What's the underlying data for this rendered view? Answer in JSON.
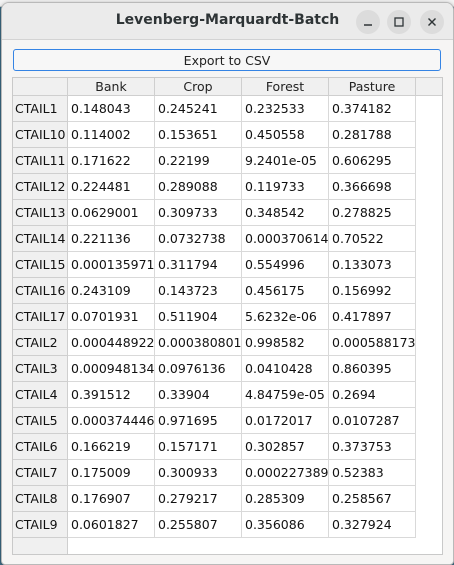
{
  "window": {
    "title": "Levenberg-Marquardt-Batch"
  },
  "toolbar": {
    "export_label": "Export to CSV"
  },
  "table": {
    "columns": [
      "Bank",
      "Crop",
      "Forest",
      "Pasture"
    ],
    "rows": [
      {
        "label": "CTAIL1",
        "values": [
          "0.148043",
          "0.245241",
          "0.232533",
          "0.374182"
        ]
      },
      {
        "label": "CTAIL10",
        "values": [
          "0.114002",
          "0.153651",
          "0.450558",
          "0.281788"
        ]
      },
      {
        "label": "CTAIL11",
        "values": [
          "0.171622",
          "0.22199",
          "9.2401e-05",
          "0.606295"
        ]
      },
      {
        "label": "CTAIL12",
        "values": [
          "0.224481",
          "0.289088",
          "0.119733",
          "0.366698"
        ]
      },
      {
        "label": "CTAIL13",
        "values": [
          "0.0629001",
          "0.309733",
          "0.348542",
          "0.278825"
        ]
      },
      {
        "label": "CTAIL14",
        "values": [
          "0.221136",
          "0.0732738",
          "0.000370614",
          "0.70522"
        ]
      },
      {
        "label": "CTAIL15",
        "values": [
          "0.000135971",
          "0.311794",
          "0.554996",
          "0.133073"
        ]
      },
      {
        "label": "CTAIL16",
        "values": [
          "0.243109",
          "0.143723",
          "0.456175",
          "0.156992"
        ]
      },
      {
        "label": "CTAIL17",
        "values": [
          "0.0701931",
          "0.511904",
          "5.6232e-06",
          "0.417897"
        ]
      },
      {
        "label": "CTAIL2",
        "values": [
          "0.000448922",
          "0.000380801",
          "0.998582",
          "0.000588173"
        ]
      },
      {
        "label": "CTAIL3",
        "values": [
          "0.000948134",
          "0.0976136",
          "0.0410428",
          "0.860395"
        ]
      },
      {
        "label": "CTAIL4",
        "values": [
          "0.391512",
          "0.33904",
          "4.84759e-05",
          "0.2694"
        ]
      },
      {
        "label": "CTAIL5",
        "values": [
          "0.000374446",
          "0.971695",
          "0.0172017",
          "0.0107287"
        ]
      },
      {
        "label": "CTAIL6",
        "values": [
          "0.166219",
          "0.157171",
          "0.302857",
          "0.373753"
        ]
      },
      {
        "label": "CTAIL7",
        "values": [
          "0.175009",
          "0.300933",
          "0.000227389",
          "0.52383"
        ]
      },
      {
        "label": "CTAIL8",
        "values": [
          "0.176907",
          "0.279217",
          "0.285309",
          "0.258567"
        ]
      },
      {
        "label": "CTAIL9",
        "values": [
          "0.0601827",
          "0.255807",
          "0.356086",
          "0.327924"
        ]
      }
    ]
  },
  "icons": {
    "minimize": "minimize-icon",
    "maximize": "maximize-icon",
    "close": "close-icon"
  },
  "colors": {
    "accent": "#3584e4",
    "header_bg": "#f0f0f0",
    "titlebar_bg": "#ebebeb"
  }
}
